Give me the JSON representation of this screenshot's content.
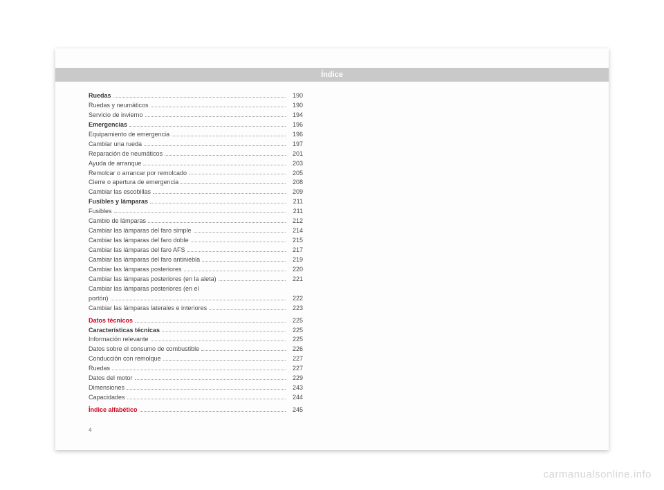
{
  "header_title": "Índice",
  "page_number": "4",
  "watermark": "carmanualsonline.info",
  "toc": [
    {
      "label": "Ruedas",
      "page": "190",
      "style": "bold"
    },
    {
      "label": "Ruedas y neumáticos",
      "page": "190"
    },
    {
      "label": "Servicio de invierno",
      "page": "194"
    },
    {
      "label": "Emergencias",
      "page": "196",
      "style": "bold"
    },
    {
      "label": "Equipamiento de emergencia",
      "page": "196"
    },
    {
      "label": "Cambiar una rueda",
      "page": "197"
    },
    {
      "label": "Reparación de neumáticos",
      "page": "201"
    },
    {
      "label": "Ayuda de arranque",
      "page": "203"
    },
    {
      "label": "Remolcar o arrancar por remolcado",
      "page": "205"
    },
    {
      "label": "Cierre o apertura de emergencia",
      "page": "208"
    },
    {
      "label": "Cambiar las escobillas",
      "page": "209"
    },
    {
      "label": "Fusibles y lámparas",
      "page": "211",
      "style": "bold"
    },
    {
      "label": "Fusibles",
      "page": "211"
    },
    {
      "label": "Cambio de lámparas",
      "page": "212"
    },
    {
      "label": "Cambiar las lámparas del faro simple",
      "page": "214"
    },
    {
      "label": "Cambiar las lámparas del faro doble",
      "page": "215"
    },
    {
      "label": "Cambiar las lámparas del faro AFS",
      "page": "217"
    },
    {
      "label": "Cambiar las lámparas del faro antiniebla",
      "page": "219"
    },
    {
      "label": "Cambiar las lámparas posteriores",
      "page": "220"
    },
    {
      "label": "Cambiar las lámparas posteriores (en la aleta)",
      "page": "221"
    },
    {
      "label": "Cambiar las lámparas posteriores (en el",
      "page": "",
      "nodots": true
    },
    {
      "label": "portón)",
      "page": "222"
    },
    {
      "label": "Cambiar las lámparas laterales e interiores",
      "page": "223"
    },
    {
      "gap": true
    },
    {
      "label": "Datos técnicos",
      "page": "225",
      "style": "red"
    },
    {
      "label": "Características técnicas",
      "page": "225",
      "style": "bold"
    },
    {
      "label": "Información relevante",
      "page": "225"
    },
    {
      "label": "Datos sobre el consumo de combustible",
      "page": "226"
    },
    {
      "label": "Conducción con remolque",
      "page": "227"
    },
    {
      "label": "Ruedas",
      "page": "227"
    },
    {
      "label": "Datos del motor",
      "page": "229"
    },
    {
      "label": "Dimensiones",
      "page": "243"
    },
    {
      "label": "Capacidades",
      "page": "244"
    },
    {
      "gap": true
    },
    {
      "label": "Índice alfabético",
      "page": "245",
      "style": "red"
    }
  ]
}
